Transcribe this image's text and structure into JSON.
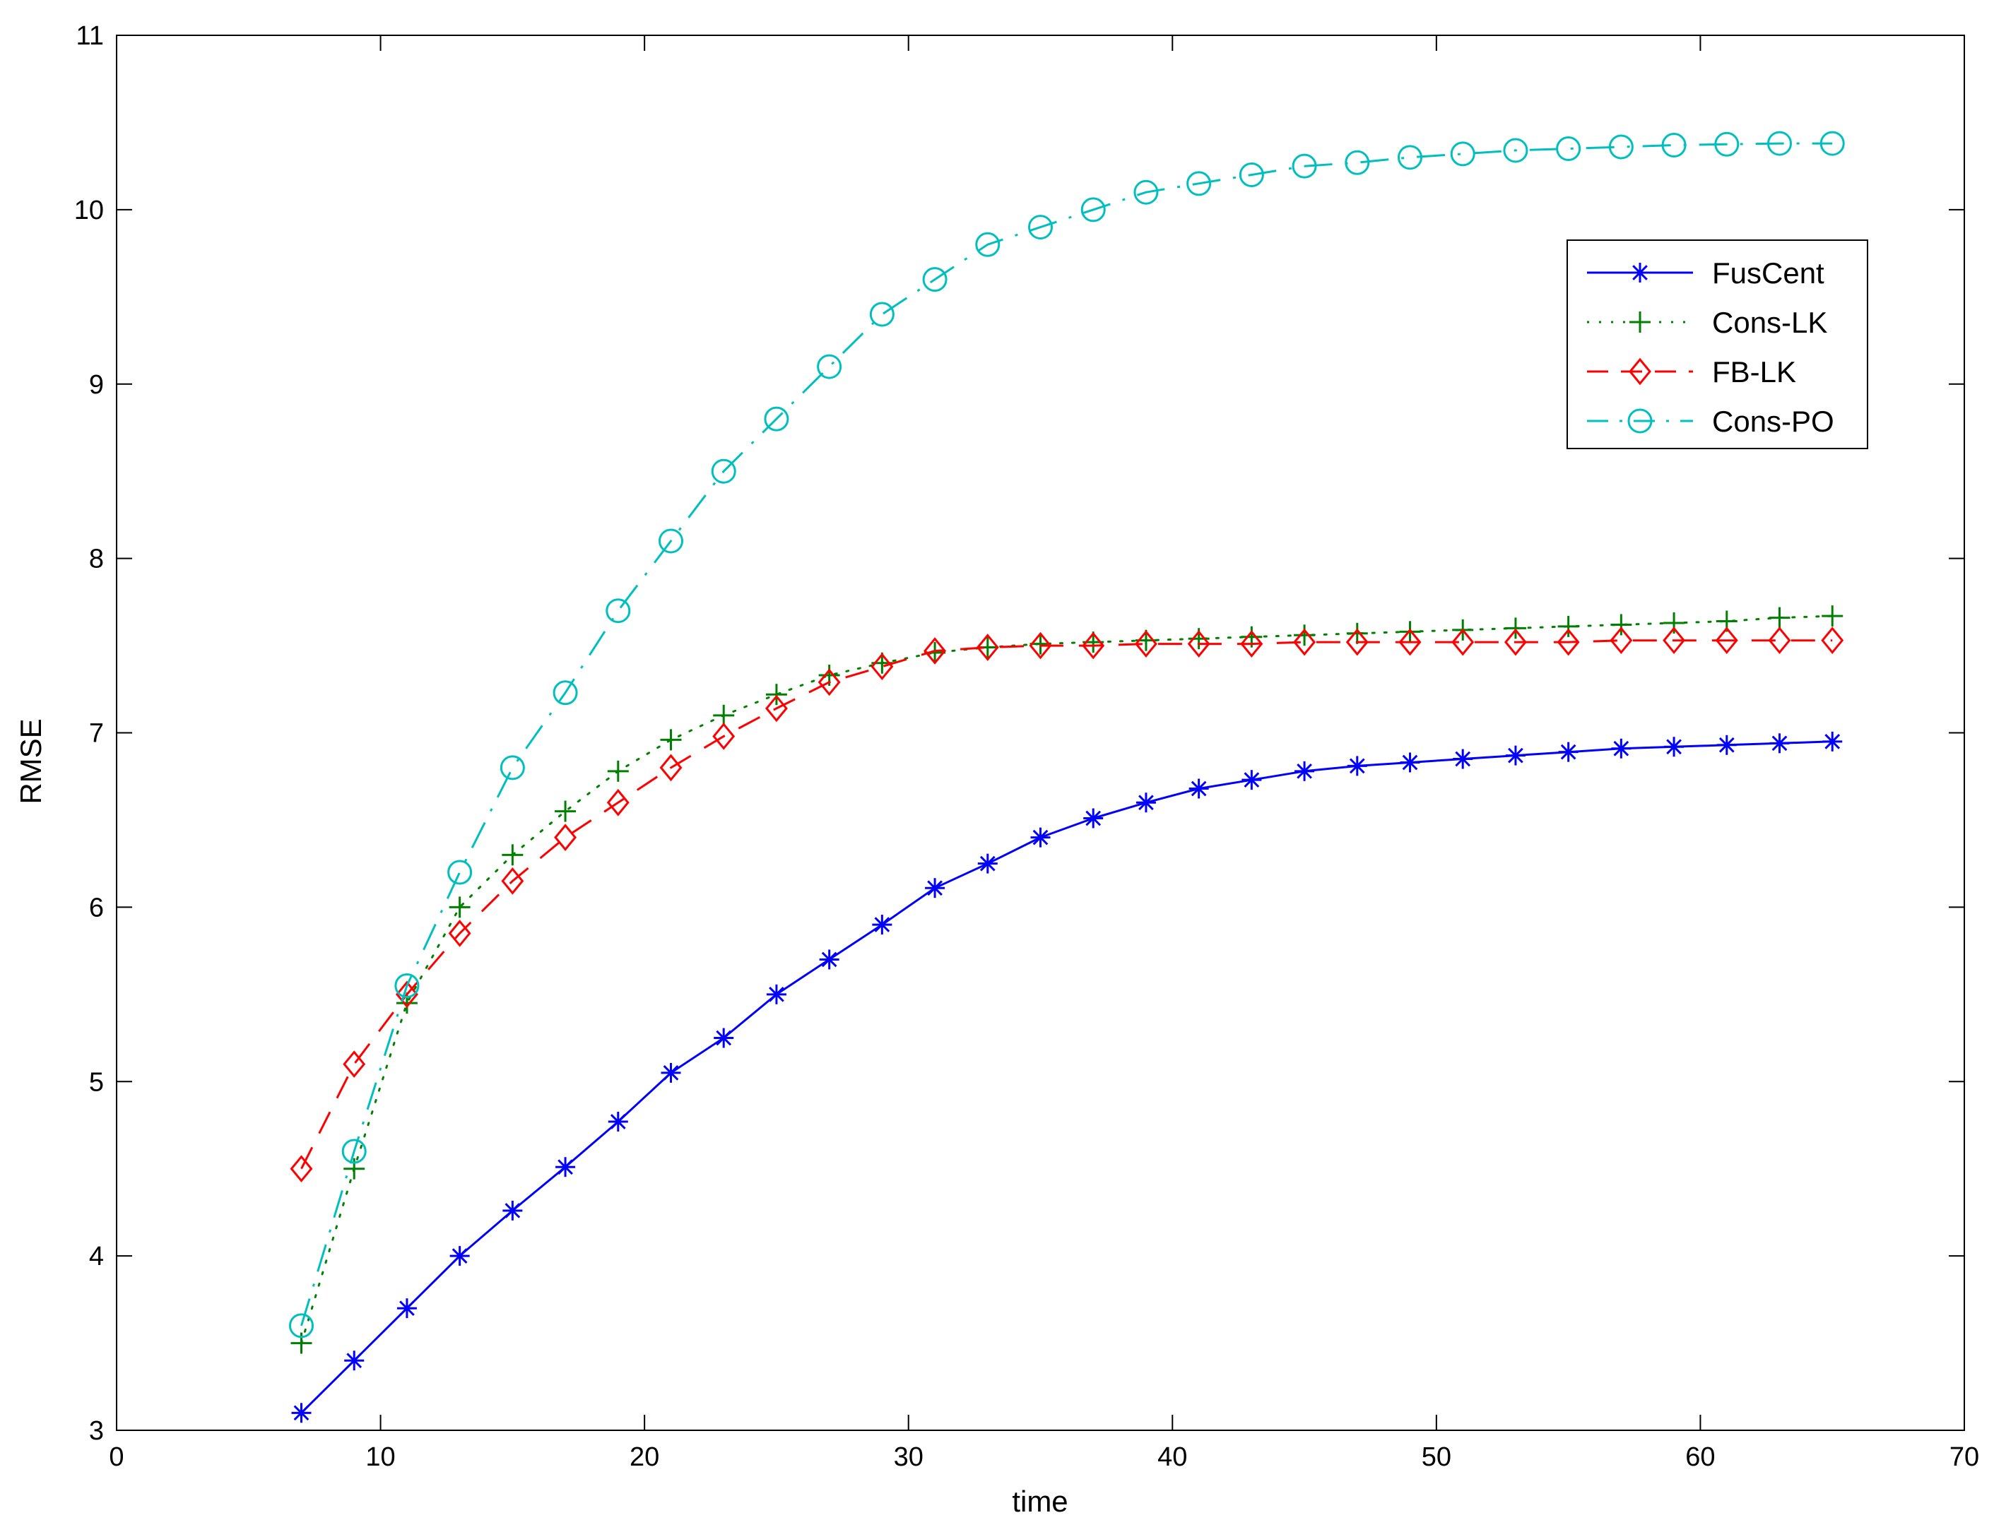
{
  "chart_data": {
    "type": "line",
    "title": "",
    "xlabel": "time",
    "ylabel": "RMSE",
    "xlim": [
      0,
      70
    ],
    "ylim": [
      3,
      11
    ],
    "xticks": [
      0,
      10,
      20,
      30,
      40,
      50,
      60,
      70
    ],
    "yticks": [
      3,
      4,
      5,
      6,
      7,
      8,
      9,
      10,
      11
    ],
    "grid": false,
    "legend_position": "top-right",
    "x": [
      7,
      9,
      11,
      13,
      15,
      17,
      19,
      21,
      23,
      25,
      27,
      29,
      31,
      33,
      35,
      37,
      39,
      41,
      43,
      45,
      47,
      49,
      51,
      53,
      55,
      57,
      59,
      61,
      63,
      65
    ],
    "series": [
      {
        "name": "FusCent",
        "color": "#0000ff",
        "marker": "asterisk",
        "line": "solid",
        "values": [
          3.1,
          3.4,
          3.7,
          4.0,
          4.26,
          4.51,
          4.77,
          5.05,
          5.25,
          5.5,
          5.7,
          5.9,
          6.11,
          6.25,
          6.4,
          6.51,
          6.6,
          6.68,
          6.73,
          6.78,
          6.81,
          6.83,
          6.85,
          6.87,
          6.89,
          6.91,
          6.92,
          6.93,
          6.94,
          6.95
        ]
      },
      {
        "name": "Cons-LK",
        "color": "#008000",
        "marker": "plus",
        "line": "dotted",
        "values": [
          3.5,
          4.5,
          5.45,
          6.0,
          6.3,
          6.55,
          6.78,
          6.96,
          7.1,
          7.22,
          7.33,
          7.4,
          7.46,
          7.49,
          7.51,
          7.52,
          7.53,
          7.54,
          7.55,
          7.56,
          7.57,
          7.58,
          7.59,
          7.6,
          7.61,
          7.62,
          7.63,
          7.64,
          7.66,
          7.67
        ]
      },
      {
        "name": "FB-LK",
        "color": "#ff0000",
        "marker": "diamond",
        "line": "dashed",
        "values": [
          4.5,
          5.1,
          5.5,
          5.85,
          6.15,
          6.4,
          6.6,
          6.8,
          6.98,
          7.14,
          7.29,
          7.38,
          7.47,
          7.49,
          7.5,
          7.5,
          7.51,
          7.51,
          7.51,
          7.52,
          7.52,
          7.52,
          7.52,
          7.52,
          7.52,
          7.53,
          7.53,
          7.53,
          7.53,
          7.53
        ]
      },
      {
        "name": "Cons-PO",
        "color": "#00bfbf",
        "marker": "circle",
        "line": "dashdot",
        "values": [
          3.6,
          4.6,
          5.55,
          6.2,
          6.8,
          7.23,
          7.7,
          8.1,
          8.5,
          8.8,
          9.1,
          9.4,
          9.6,
          9.8,
          9.9,
          10.0,
          10.1,
          10.15,
          10.2,
          10.25,
          10.27,
          10.3,
          10.32,
          10.34,
          10.35,
          10.36,
          10.37,
          10.375,
          10.38,
          10.38
        ]
      }
    ]
  }
}
